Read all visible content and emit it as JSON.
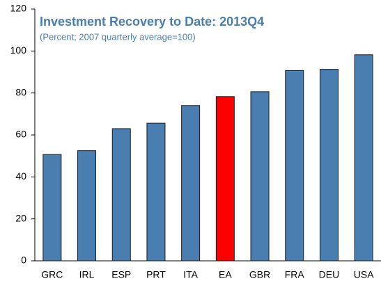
{
  "chart_data": {
    "type": "bar",
    "title": "Investment Recovery to Date: 2013Q4",
    "subtitle": "(Percent; 2007 quarterly average=100)",
    "categories": [
      "GRC",
      "IRL",
      "ESP",
      "PRT",
      "ITA",
      "EA",
      "GBR",
      "FRA",
      "DEU",
      "USA"
    ],
    "values": [
      50.7,
      52.5,
      63.0,
      65.6,
      74.0,
      78.3,
      80.6,
      90.7,
      91.3,
      98.2
    ],
    "colors": [
      "#4a7eb1",
      "#4a7eb1",
      "#4a7eb1",
      "#4a7eb1",
      "#4a7eb1",
      "#ff0000",
      "#4a7eb1",
      "#4a7eb1",
      "#4a7eb1",
      "#4a7eb1"
    ],
    "ylim": [
      0,
      120
    ],
    "yticks": [
      0,
      20,
      40,
      60,
      80,
      100,
      120
    ],
    "grid": false
  }
}
